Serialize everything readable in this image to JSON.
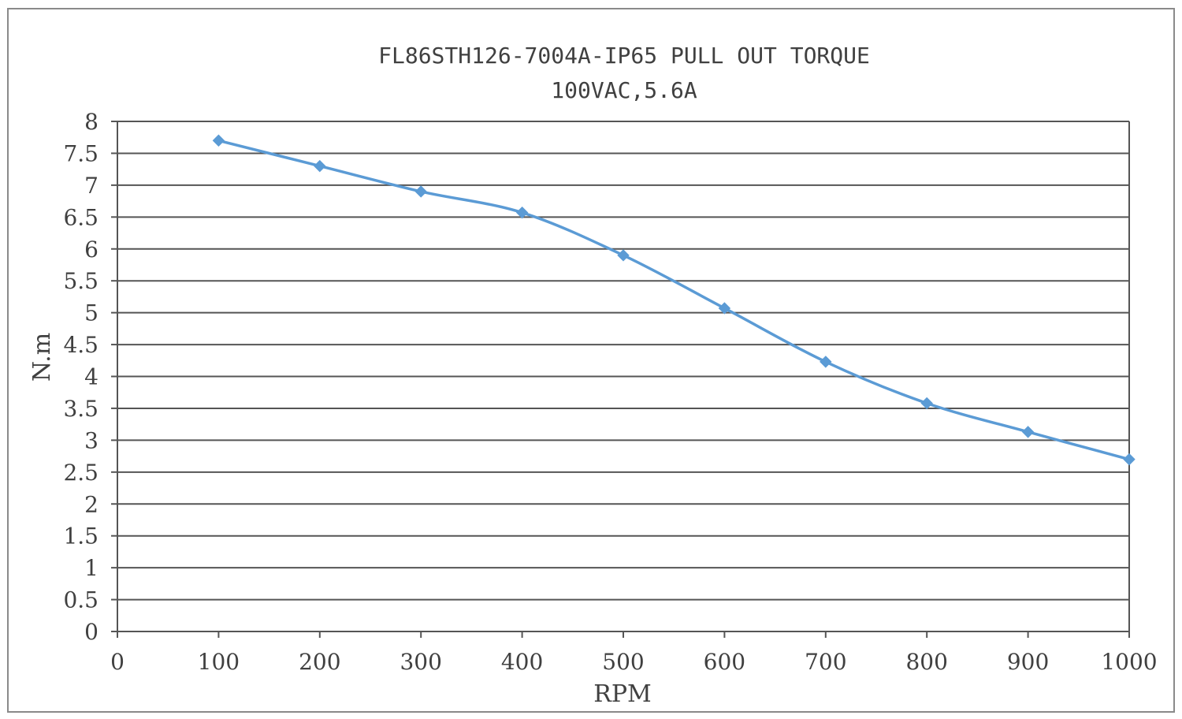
{
  "chart_data": {
    "type": "line",
    "title": "FL86STH126-7004A-IP65 PULL OUT TORQUE",
    "subtitle": "100VAC,5.6A",
    "xlabel": "RPM",
    "ylabel": "N.m",
    "xlim": [
      0,
      1000
    ],
    "ylim": [
      0,
      8
    ],
    "x_ticks": [
      "0",
      "100",
      "200",
      "300",
      "400",
      "500",
      "600",
      "700",
      "800",
      "900",
      "1000"
    ],
    "y_ticks": [
      "0",
      "0.5",
      "1",
      "1.5",
      "2",
      "2.5",
      "3",
      "3.5",
      "4",
      "4.5",
      "5",
      "5.5",
      "6",
      "6.5",
      "7",
      "7.5",
      "8"
    ],
    "grid": "horizontal",
    "legend": "none",
    "series": [
      {
        "x": [
          100,
          200,
          300,
          400,
          500,
          600,
          700,
          800,
          900,
          1000
        ],
        "values": [
          7.7,
          7.3,
          6.9,
          6.57,
          5.9,
          5.07,
          4.23,
          3.58,
          3.13,
          2.7
        ],
        "color": "#5b9bd5"
      }
    ]
  }
}
